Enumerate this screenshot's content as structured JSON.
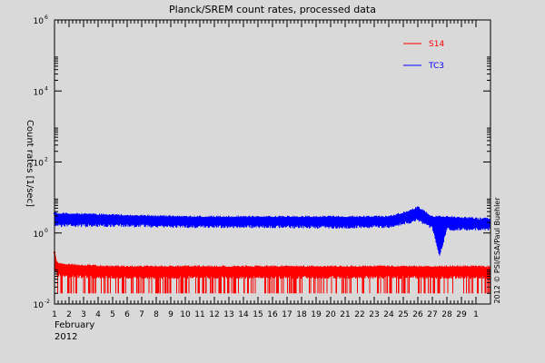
{
  "chart_data": {
    "type": "line",
    "title": "Planck/SREM count rates, processed data",
    "ylabel": "Count rates [1/sec]",
    "xlabel": "February 2012",
    "xlabel_lines": [
      "February",
      "2012"
    ],
    "credit": "2012 © PSI/ESA/Paul Buehler",
    "y_scale": "log",
    "y_ticks": [
      {
        "exp": -2,
        "label": "10"
      },
      {
        "exp": 0,
        "label": "10"
      },
      {
        "exp": 2,
        "label": "10"
      },
      {
        "exp": 4,
        "label": "10"
      },
      {
        "exp": 6,
        "label": "10"
      }
    ],
    "y_tick_exponents_printed": [
      "-2",
      "0",
      "2",
      "4",
      "6"
    ],
    "ylim_exp": [
      -2,
      6
    ],
    "x_ticks": [
      "1",
      "2",
      "3",
      "4",
      "5",
      "6",
      "7",
      "8",
      "9",
      "10",
      "11",
      "12",
      "13",
      "14",
      "15",
      "16",
      "17",
      "18",
      "19",
      "20",
      "21",
      "22",
      "23",
      "24",
      "25",
      "26",
      "27",
      "28",
      "29",
      "1"
    ],
    "xlim_day": [
      1,
      30
    ],
    "series": [
      {
        "name": "S14",
        "color": "#ff0000",
        "points": [
          {
            "day": 1,
            "exp": -0.55,
            "exp_min": -1.7
          },
          {
            "day": 1.2,
            "exp": -0.85,
            "exp_min": -1.7
          },
          {
            "day": 2,
            "exp": -0.9,
            "exp_min": -1.7
          },
          {
            "day": 5,
            "exp": -0.95,
            "exp_min": -1.7
          },
          {
            "day": 10,
            "exp": -0.95,
            "exp_min": -1.7
          },
          {
            "day": 15,
            "exp": -0.95,
            "exp_min": -1.7
          },
          {
            "day": 20,
            "exp": -0.95,
            "exp_min": -1.7
          },
          {
            "day": 25,
            "exp": -0.95,
            "exp_min": -1.7
          },
          {
            "day": 27.5,
            "exp": -0.95,
            "exp_min": -1.7
          },
          {
            "day": 30,
            "exp": -0.95,
            "exp_min": -1.7
          }
        ]
      },
      {
        "name": "TC3",
        "color": "#0000ff",
        "points": [
          {
            "day": 1,
            "exp": 0.55,
            "exp_min": 0.25
          },
          {
            "day": 5,
            "exp": 0.5,
            "exp_min": 0.25
          },
          {
            "day": 10,
            "exp": 0.45,
            "exp_min": 0.22
          },
          {
            "day": 15,
            "exp": 0.45,
            "exp_min": 0.22
          },
          {
            "day": 20,
            "exp": 0.45,
            "exp_min": 0.2
          },
          {
            "day": 24,
            "exp": 0.45,
            "exp_min": 0.22
          },
          {
            "day": 25.5,
            "exp": 0.62,
            "exp_min": 0.35
          },
          {
            "day": 26,
            "exp": 0.72,
            "exp_min": 0.42
          },
          {
            "day": 27,
            "exp": 0.45,
            "exp_min": 0.18
          },
          {
            "day": 27.5,
            "exp": 0.45,
            "exp_min": -0.6
          },
          {
            "day": 28,
            "exp": 0.45,
            "exp_min": 0.15
          },
          {
            "day": 30,
            "exp": 0.4,
            "exp_min": 0.15
          }
        ]
      }
    ],
    "grid": false,
    "legend_position": "top-right"
  }
}
